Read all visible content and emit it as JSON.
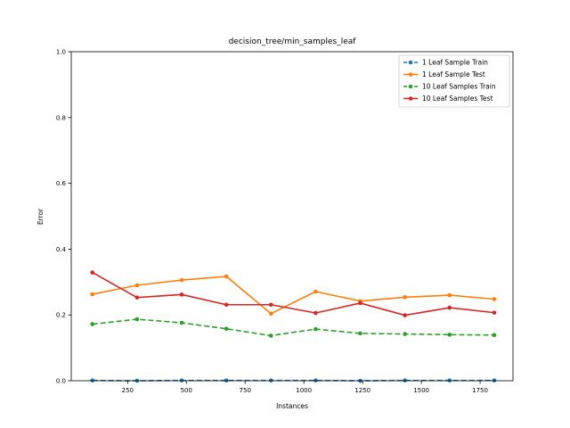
{
  "chart_data": {
    "type": "line",
    "title": "decision_tree/min_samples_leaf",
    "xlabel": "Instances",
    "ylabel": "Error",
    "xlim": [
      10,
      1890
    ],
    "ylim": [
      0.0,
      1.0
    ],
    "x_ticks": [
      250,
      500,
      750,
      1000,
      1250,
      1500,
      1750
    ],
    "y_ticks": [
      0.0,
      0.2,
      0.4,
      0.6,
      0.8,
      1.0
    ],
    "x_tick_labels": [
      "250",
      "500",
      "750",
      "1000",
      "1250",
      "1500",
      "1750"
    ],
    "y_tick_labels": [
      "0.0",
      "0.2",
      "0.4",
      "0.6",
      "0.8",
      "1.0"
    ],
    "x": [
      100,
      290,
      480,
      670,
      860,
      1050,
      1240,
      1430,
      1620,
      1810
    ],
    "legend_position": "top-right",
    "grid": false,
    "series": [
      {
        "name": "1 Leaf Sample Train",
        "color": "#1f77b4",
        "style": "dashed",
        "values": [
          0.001,
          0.0,
          0.001,
          0.001,
          0.001,
          0.001,
          0.0,
          0.001,
          0.001,
          0.001
        ]
      },
      {
        "name": "1 Leaf Sample Test",
        "color": "#ff7f0e",
        "style": "solid",
        "values": [
          0.263,
          0.29,
          0.306,
          0.317,
          0.204,
          0.271,
          0.242,
          0.254,
          0.26,
          0.248
        ]
      },
      {
        "name": "10 Leaf Samples Train",
        "color": "#2ca02c",
        "style": "dashed",
        "values": [
          0.172,
          0.187,
          0.176,
          0.158,
          0.137,
          0.157,
          0.144,
          0.142,
          0.14,
          0.139
        ]
      },
      {
        "name": "10 Leaf Samples Test",
        "color": "#d62728",
        "style": "solid",
        "values": [
          0.329,
          0.253,
          0.262,
          0.231,
          0.231,
          0.206,
          0.236,
          0.199,
          0.222,
          0.207
        ]
      }
    ]
  }
}
